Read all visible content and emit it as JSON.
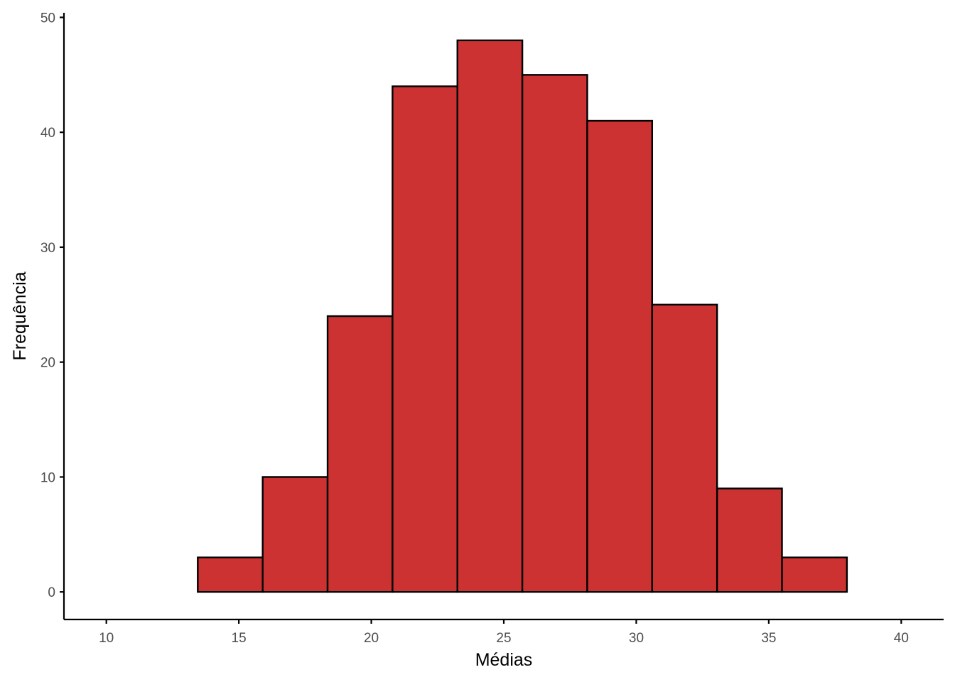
{
  "chart_data": {
    "type": "bar",
    "subtype": "histogram",
    "title": "",
    "xlabel": "Médias",
    "ylabel": "Frequência",
    "xlim": [
      8.4,
      41.6
    ],
    "ylim": [
      -2.4,
      50.4
    ],
    "x_ticks": [
      10,
      15,
      20,
      25,
      30,
      35,
      40
    ],
    "y_ticks": [
      0,
      10,
      20,
      30,
      40,
      50
    ],
    "grid": false,
    "legend": "none",
    "bar_fill": "#cd3232",
    "bar_edge": "#000000",
    "bins": [
      {
        "x0": 13.45,
        "x1": 15.9,
        "count": 3
      },
      {
        "x0": 15.9,
        "x1": 18.35,
        "count": 10
      },
      {
        "x0": 18.35,
        "x1": 20.8,
        "count": 24
      },
      {
        "x0": 20.8,
        "x1": 23.25,
        "count": 44
      },
      {
        "x0": 23.25,
        "x1": 25.7,
        "count": 48
      },
      {
        "x0": 25.7,
        "x1": 28.15,
        "count": 45
      },
      {
        "x0": 28.15,
        "x1": 30.6,
        "count": 41
      },
      {
        "x0": 30.6,
        "x1": 33.05,
        "count": 25
      },
      {
        "x0": 33.05,
        "x1": 35.5,
        "count": 9
      },
      {
        "x0": 35.5,
        "x1": 37.95,
        "count": 3
      }
    ]
  }
}
